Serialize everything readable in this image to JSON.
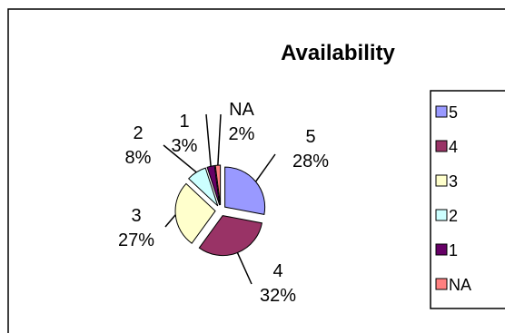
{
  "chart_data": {
    "type": "pie",
    "title": "Availability",
    "categories": [
      "5",
      "4",
      "3",
      "2",
      "1",
      "NA"
    ],
    "values": [
      28,
      32,
      27,
      8,
      3,
      2
    ],
    "value_labels": [
      "28%",
      "32%",
      "27%",
      "8%",
      "3%",
      "2%"
    ],
    "colors": [
      "#9999ff",
      "#993366",
      "#ffffcc",
      "#ccffff",
      "#660066",
      "#ff8080"
    ],
    "exploded": true,
    "legend": {
      "position": "right",
      "items": [
        "5",
        "4",
        "3",
        "2",
        "1",
        "NA"
      ]
    }
  }
}
